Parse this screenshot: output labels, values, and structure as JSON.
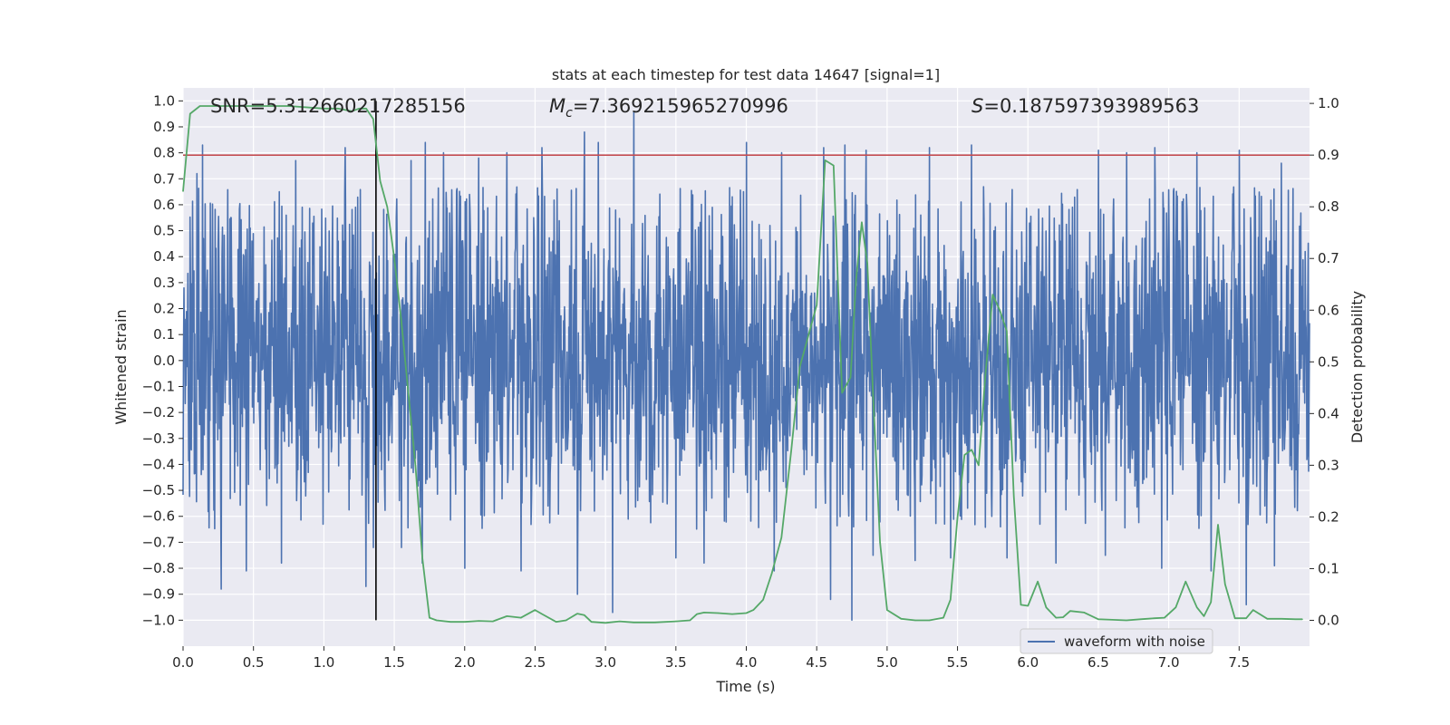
{
  "chart_data": {
    "type": "line",
    "title": "stats at each timestep for test data 14647 [signal=1]",
    "xlabel": "Time (s)",
    "ylabel_left": "Whitened strain",
    "ylabel_right": "Detection probability",
    "xlim": [
      0.0,
      8.0
    ],
    "ylim_left": [
      -1.1,
      1.05
    ],
    "ylim_right": [
      -0.05,
      1.03
    ],
    "x_ticks": [
      0.0,
      0.5,
      1.0,
      1.5,
      2.0,
      2.5,
      3.0,
      3.5,
      4.0,
      4.5,
      5.0,
      5.5,
      6.0,
      6.5,
      7.0,
      7.5
    ],
    "x_tick_labels": [
      "0.0",
      "0.5",
      "1.0",
      "1.5",
      "2.0",
      "2.5",
      "3.0",
      "3.5",
      "4.0",
      "4.5",
      "5.0",
      "5.5",
      "6.0",
      "6.5",
      "7.0",
      "7.5"
    ],
    "y_left_ticks": [
      1.0,
      0.9,
      0.8,
      0.7,
      0.6,
      0.5,
      0.4,
      0.3,
      0.2,
      0.1,
      0.0,
      -0.1,
      -0.2,
      -0.3,
      -0.4,
      -0.5,
      -0.6,
      -0.7,
      -0.8,
      -0.9,
      -1.0
    ],
    "y_left_tick_labels": [
      "1.0",
      "0.9",
      "0.8",
      "0.7",
      "0.6",
      "0.5",
      "0.4",
      "0.3",
      "0.2",
      "0.1",
      "0.0",
      "−0.1",
      "−0.2",
      "−0.3",
      "−0.4",
      "−0.5",
      "−0.6",
      "−0.7",
      "−0.8",
      "−0.9",
      "−1.0"
    ],
    "y_right_ticks": [
      1.0,
      0.9,
      0.8,
      0.7,
      0.6,
      0.5,
      0.4,
      0.3,
      0.2,
      0.1,
      0.0
    ],
    "y_right_tick_labels": [
      "1.0",
      "0.9",
      "0.8",
      "0.7",
      "0.6",
      "0.5",
      "0.4",
      "0.3",
      "0.2",
      "0.1",
      "0.0"
    ],
    "annotations": {
      "snr": "SNR=5.312660217285156",
      "mc_symbol": "M",
      "mc_subscript": "c",
      "mc_value": "=7.369215965270996",
      "s_symbol": "S",
      "s_value": "=0.187597393989563"
    },
    "threshold_line": {
      "value": 0.9,
      "axis": "right",
      "color": "#c44e52"
    },
    "marker_line": {
      "x": 1.37,
      "y_range": [
        -1.0,
        1.0
      ],
      "color": "#000000"
    },
    "series": [
      {
        "name": "waveform with noise",
        "axis": "left",
        "color": "#4c72b0",
        "representation": "dense whitened-strain noise between about -1.0 and 0.96, bulk between -0.42 and 0.46; prominent spikes listed below",
        "envelope_max": 0.96,
        "envelope_min": -1.0,
        "peaks_x": [
          0.1,
          0.14,
          0.8,
          1.15,
          1.3,
          1.62,
          1.72,
          1.85,
          2.1,
          2.3,
          2.55,
          2.85,
          2.95,
          3.2,
          3.5,
          4.0,
          4.25,
          4.55,
          4.7,
          4.85,
          5.3,
          5.6,
          6.2,
          6.5,
          6.7,
          6.9,
          7.2,
          7.5,
          7.8
        ],
        "peaks_y": [
          0.72,
          0.83,
          0.77,
          0.82,
          0.83,
          0.77,
          0.84,
          0.8,
          0.78,
          0.8,
          0.82,
          0.88,
          0.84,
          0.96,
          0.81,
          0.84,
          0.8,
          0.82,
          0.83,
          0.81,
          0.82,
          0.83,
          0.82,
          0.81,
          0.8,
          0.82,
          0.8,
          0.81,
          0.76
        ],
        "troughs_x": [
          0.27,
          0.45,
          0.7,
          1.3,
          1.35,
          1.55,
          1.7,
          2.0,
          2.4,
          2.8,
          3.05,
          3.5,
          3.7,
          4.2,
          4.6,
          4.75,
          4.9,
          5.2,
          5.45,
          5.85,
          6.2,
          6.55,
          6.95,
          7.3,
          7.55,
          7.75
        ],
        "troughs_y": [
          -0.88,
          -0.81,
          -0.78,
          -0.87,
          -0.72,
          -0.72,
          -0.78,
          -0.8,
          -0.81,
          -0.9,
          -0.97,
          -0.76,
          -0.78,
          -0.81,
          -0.92,
          -1.0,
          -0.75,
          -0.77,
          -0.76,
          -0.76,
          -0.78,
          -0.75,
          -0.8,
          -0.81,
          -0.94,
          -0.79
        ]
      },
      {
        "name": "detection probability",
        "axis": "right",
        "color": "#55a868",
        "x": [
          0.0,
          0.05,
          0.12,
          0.25,
          0.5,
          0.75,
          1.0,
          1.1,
          1.2,
          1.25,
          1.3,
          1.35,
          1.4,
          1.45,
          1.5,
          1.55,
          1.6,
          1.65,
          1.7,
          1.75,
          1.8,
          1.9,
          2.0,
          2.1,
          2.2,
          2.3,
          2.4,
          2.5,
          2.55,
          2.65,
          2.72,
          2.8,
          2.85,
          2.9,
          3.0,
          3.1,
          3.2,
          3.35,
          3.5,
          3.6,
          3.65,
          3.7,
          3.8,
          3.9,
          4.0,
          4.05,
          4.12,
          4.18,
          4.25,
          4.32,
          4.38,
          4.44,
          4.5,
          4.56,
          4.62,
          4.68,
          4.74,
          4.78,
          4.82,
          4.86,
          4.9,
          4.95,
          5.0,
          5.1,
          5.2,
          5.3,
          5.4,
          5.45,
          5.5,
          5.55,
          5.6,
          5.65,
          5.7,
          5.75,
          5.8,
          5.85,
          5.9,
          5.95,
          6.0,
          6.07,
          6.13,
          6.2,
          6.25,
          6.3,
          6.4,
          6.5,
          6.6,
          6.7,
          6.8,
          6.9,
          6.97,
          7.05,
          7.12,
          7.2,
          7.25,
          7.3,
          7.35,
          7.4,
          7.47,
          7.55,
          7.6,
          7.7,
          7.8,
          7.9,
          7.95
        ],
        "y": [
          0.83,
          0.98,
          0.995,
          0.995,
          0.995,
          0.995,
          0.99,
          0.99,
          0.985,
          0.99,
          0.99,
          0.97,
          0.85,
          0.8,
          0.7,
          0.58,
          0.44,
          0.3,
          0.12,
          0.005,
          0.0,
          -0.003,
          -0.003,
          -0.001,
          -0.002,
          0.008,
          0.005,
          0.02,
          0.012,
          -0.003,
          0.0,
          0.013,
          0.01,
          -0.003,
          -0.005,
          -0.002,
          -0.004,
          -0.004,
          -0.002,
          0.0,
          0.012,
          0.015,
          0.014,
          0.012,
          0.014,
          0.02,
          0.04,
          0.09,
          0.16,
          0.33,
          0.49,
          0.55,
          0.61,
          0.89,
          0.88,
          0.44,
          0.47,
          0.66,
          0.77,
          0.69,
          0.44,
          0.15,
          0.02,
          0.003,
          0.0,
          0.0,
          0.005,
          0.04,
          0.2,
          0.32,
          0.33,
          0.3,
          0.48,
          0.63,
          0.6,
          0.56,
          0.24,
          0.03,
          0.028,
          0.075,
          0.025,
          0.005,
          0.006,
          0.018,
          0.015,
          0.002,
          0.001,
          0.0,
          0.002,
          0.004,
          0.005,
          0.025,
          0.075,
          0.025,
          0.008,
          0.035,
          0.185,
          0.07,
          0.004,
          0.004,
          0.02,
          0.003,
          0.003,
          0.002,
          0.002
        ]
      }
    ],
    "legend": {
      "entries": [
        "waveform with noise"
      ],
      "placement": "bottom-right"
    }
  }
}
